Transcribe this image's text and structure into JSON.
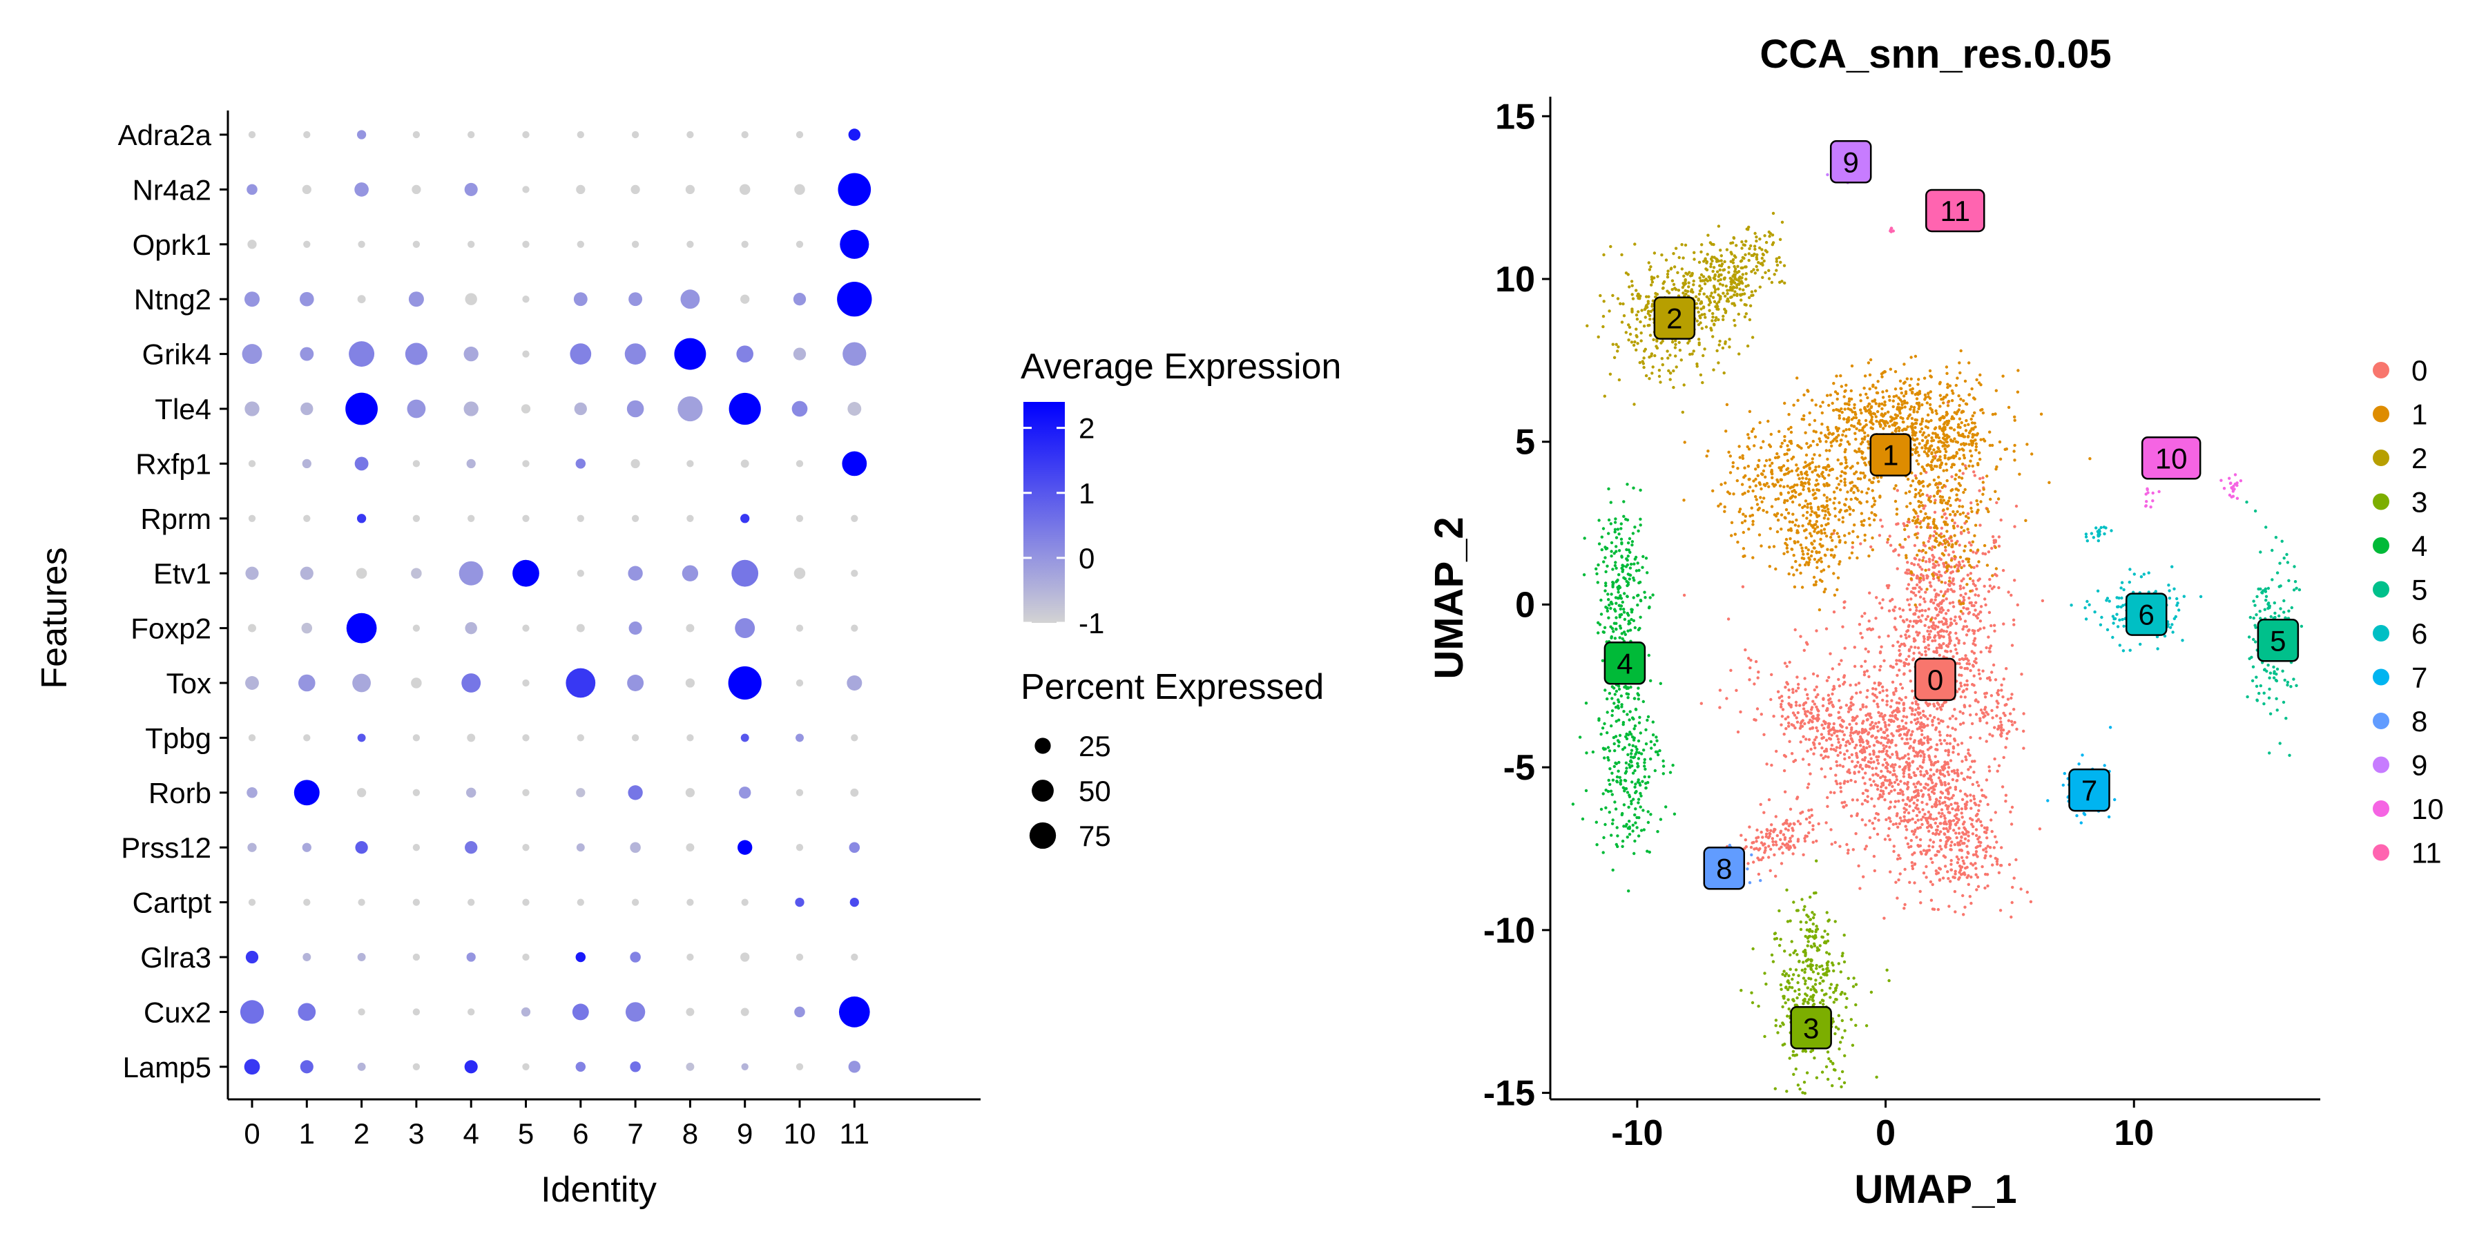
{
  "chart_data": [
    {
      "type": "scatter",
      "subtype": "dotplot",
      "title": "",
      "xlabel": "Identity",
      "ylabel": "Features",
      "categories": [
        "0",
        "1",
        "2",
        "3",
        "4",
        "5",
        "6",
        "7",
        "8",
        "9",
        "10",
        "11"
      ],
      "features": [
        "Adra2a",
        "Nr4a2",
        "Oprk1",
        "Ntng2",
        "Grik4",
        "Tle4",
        "Rxfp1",
        "Rprm",
        "Etv1",
        "Foxp2",
        "Tox",
        "Tpbg",
        "Rorb",
        "Prss12",
        "Cartpt",
        "Glra3",
        "Cux2",
        "Lamp5"
      ],
      "percent_expressed": [
        [
          2,
          2,
          4,
          2,
          2,
          2,
          2,
          2,
          2,
          2,
          2,
          8
        ],
        [
          6,
          4,
          12,
          4,
          10,
          2,
          4,
          4,
          4,
          6,
          6,
          78
        ],
        [
          4,
          2,
          2,
          2,
          2,
          2,
          2,
          2,
          2,
          2,
          2,
          60
        ],
        [
          14,
          12,
          3,
          14,
          8,
          2,
          11,
          11,
          24,
          4,
          9,
          88
        ],
        [
          26,
          11,
          45,
          33,
          13,
          2,
          30,
          30,
          72,
          18,
          9,
          38
        ],
        [
          13,
          9,
          75,
          22,
          13,
          4,
          9,
          18,
          43,
          73,
          15,
          11
        ],
        [
          2,
          4,
          11,
          2,
          4,
          2,
          5,
          4,
          2,
          3,
          2,
          42
        ],
        [
          2,
          2,
          4,
          2,
          2,
          2,
          2,
          2,
          2,
          4,
          2,
          2
        ],
        [
          10,
          10,
          6,
          6,
          40,
          50,
          2,
          13,
          16,
          50,
          7,
          2
        ],
        [
          3,
          6,
          65,
          2,
          8,
          2,
          3,
          10,
          3,
          26,
          2,
          2
        ],
        [
          11,
          18,
          22,
          6,
          24,
          2,
          62,
          17,
          4,
          80,
          2,
          14
        ],
        [
          2,
          2,
          3,
          2,
          3,
          2,
          2,
          2,
          2,
          3,
          3,
          2
        ],
        [
          6,
          45,
          4,
          2,
          5,
          2,
          4,
          13,
          4,
          8,
          2,
          3
        ],
        [
          4,
          4,
          9,
          2,
          9,
          2,
          3,
          6,
          3,
          13,
          2,
          6
        ],
        [
          2,
          2,
          2,
          2,
          2,
          2,
          2,
          2,
          2,
          2,
          4,
          4
        ],
        [
          9,
          3,
          3,
          2,
          4,
          2,
          5,
          6,
          2,
          4,
          2,
          2
        ],
        [
          38,
          20,
          2,
          2,
          2,
          4,
          17,
          25,
          3,
          3,
          6,
          68
        ],
        [
          15,
          10,
          3,
          2,
          10,
          2,
          5,
          6,
          3,
          2,
          2,
          8
        ]
      ],
      "average_expression": [
        [
          -1,
          -1,
          0,
          -1,
          -1,
          -1,
          -1,
          -1,
          -1,
          -1,
          -1,
          2
        ],
        [
          0,
          -1,
          0,
          -1,
          0,
          -1,
          -1,
          -1,
          -1,
          -1,
          -1,
          2.4
        ],
        [
          -1,
          -1,
          -1,
          -1,
          -1,
          -1,
          -1,
          -1,
          -1,
          -1,
          -1,
          2.4
        ],
        [
          0,
          0,
          -1,
          0,
          -1,
          -1,
          0,
          0,
          0,
          -1,
          0,
          2.4
        ],
        [
          0,
          0,
          0.3,
          0.2,
          -0.3,
          -1,
          0.3,
          0.2,
          2.4,
          0.3,
          -0.5,
          0
        ],
        [
          -0.5,
          -0.5,
          2.4,
          0,
          -0.5,
          -1,
          -0.5,
          0,
          -0.2,
          2.4,
          0.2,
          -0.7
        ],
        [
          -1,
          -0.5,
          0.5,
          -1,
          -0.5,
          -1,
          0.3,
          -1,
          -1,
          -1,
          -1,
          2.4
        ],
        [
          -1,
          -1,
          1.5,
          -1,
          -1,
          -1,
          -1,
          -1,
          -1,
          1.5,
          -1,
          -1
        ],
        [
          -0.5,
          -0.5,
          -1,
          -0.7,
          0,
          2.4,
          -1,
          0,
          0,
          0.5,
          -1,
          -1
        ],
        [
          -1,
          -0.7,
          2.4,
          -1,
          -0.5,
          -1,
          -1,
          0,
          -1,
          0.2,
          -1,
          -1
        ],
        [
          -0.5,
          0,
          -0.3,
          -1,
          0.5,
          -1,
          1.5,
          0,
          -1,
          2.4,
          -1,
          -0.3
        ],
        [
          -1,
          -1,
          1,
          -1,
          -1,
          -1,
          -1,
          -1,
          -1,
          1,
          0,
          -1
        ],
        [
          -0.3,
          2.4,
          -1,
          -1,
          -0.5,
          -1,
          -0.7,
          0.5,
          -1,
          0,
          -1,
          -1
        ],
        [
          -0.5,
          -0.3,
          0.9,
          -1,
          0.5,
          -1,
          -0.5,
          -0.5,
          -1,
          2.4,
          -1,
          0.2
        ],
        [
          -1,
          -1,
          -1,
          -1,
          -1,
          -1,
          -1,
          -1,
          -1,
          -1,
          1,
          1.2
        ],
        [
          1.5,
          -0.5,
          -0.5,
          -1,
          0,
          -1,
          2,
          0.3,
          -1,
          -1,
          -1,
          -1
        ],
        [
          0.6,
          0.5,
          -1,
          -1,
          -1,
          -0.5,
          0.5,
          0.3,
          -1,
          -1,
          0,
          2.4
        ],
        [
          1.5,
          0.8,
          -0.5,
          -1,
          1.7,
          -1,
          0.3,
          0.6,
          -0.7,
          -0.5,
          -1,
          0
        ]
      ],
      "color_legend": {
        "title": "Average Expression",
        "ticks": [
          2,
          1,
          0,
          -1
        ],
        "low_color": "#d3d3d3",
        "high_color": "#0000ff",
        "range": [
          -1,
          2.4
        ]
      },
      "size_legend": {
        "title": "Percent Expressed",
        "ticks": [
          25,
          50,
          75
        ]
      }
    },
    {
      "type": "scatter",
      "subtype": "umap",
      "title": "CCA_snn_res.0.05",
      "xlabel": "UMAP_1",
      "ylabel": "UMAP_2",
      "xlim": [
        -13.5,
        17.5
      ],
      "ylim": [
        -15.2,
        15.6
      ],
      "xticks": [
        -10,
        0,
        10
      ],
      "yticks": [
        15,
        10,
        5,
        0,
        -5,
        -10,
        -15
      ],
      "tick_labels_x": [
        "-10",
        "0",
        "10"
      ],
      "tick_labels_y": [
        "15",
        "10",
        "5",
        "0",
        "-5",
        "-10",
        "-15"
      ],
      "legend": {
        "position": "right",
        "items": [
          "0",
          "1",
          "2",
          "3",
          "4",
          "5",
          "6",
          "7",
          "8",
          "9",
          "10",
          "11"
        ]
      },
      "clusters": [
        {
          "name": "0",
          "color": "#F8766D",
          "label_pos": [
            2.0,
            -2.3
          ]
        },
        {
          "name": "1",
          "color": "#DE8C00",
          "label_pos": [
            0.2,
            4.6
          ]
        },
        {
          "name": "2",
          "color": "#B79F00",
          "label_pos": [
            -8.5,
            8.8
          ]
        },
        {
          "name": "3",
          "color": "#7CAE00",
          "label_pos": [
            -3.0,
            -13.0
          ]
        },
        {
          "name": "4",
          "color": "#00BA38",
          "label_pos": [
            -10.5,
            -1.8
          ]
        },
        {
          "name": "5",
          "color": "#00C08B",
          "label_pos": [
            15.8,
            -1.1
          ]
        },
        {
          "name": "6",
          "color": "#00BFC4",
          "label_pos": [
            10.5,
            -0.3
          ]
        },
        {
          "name": "7",
          "color": "#00B4F0",
          "label_pos": [
            8.2,
            -5.7
          ]
        },
        {
          "name": "8",
          "color": "#619CFF",
          "label_pos": [
            -6.5,
            -8.1
          ]
        },
        {
          "name": "9",
          "color": "#C77CFF",
          "label_pos": [
            -1.4,
            13.6
          ]
        },
        {
          "name": "10",
          "color": "#F564E3",
          "label_pos": [
            11.5,
            4.5
          ]
        },
        {
          "name": "11",
          "color": "#FF64B0",
          "label_pos": [
            2.8,
            12.1
          ]
        }
      ],
      "blobs": [
        {
          "c": 0,
          "x": 2.0,
          "y": -1.0,
          "sx": 1.3,
          "sy": 2.2,
          "r": -0.15,
          "n": 900
        },
        {
          "c": 0,
          "x": -0.2,
          "y": -4.8,
          "sx": 2.5,
          "sy": 1.3,
          "r": -0.55,
          "n": 650
        },
        {
          "c": 0,
          "x": 1.8,
          "y": -6.0,
          "sx": 1.0,
          "sy": 1.4,
          "r": 0.2,
          "n": 300
        },
        {
          "c": 0,
          "x": -2.5,
          "y": -3.6,
          "sx": 1.4,
          "sy": 0.5,
          "r": -0.35,
          "n": 180
        },
        {
          "c": 0,
          "x": 3.0,
          "y": -7.5,
          "sx": 0.8,
          "sy": 0.8,
          "r": 0,
          "n": 150
        },
        {
          "c": 0,
          "x": -4.6,
          "y": -7.3,
          "sx": 1.0,
          "sy": 0.35,
          "r": 0.35,
          "n": 130
        },
        {
          "c": 0,
          "x": 4.6,
          "y": -3.4,
          "sx": 0.4,
          "sy": 0.6,
          "r": 0,
          "n": 60
        },
        {
          "c": 1,
          "x": -3.2,
          "y": 3.6,
          "sx": 1.7,
          "sy": 1.0,
          "r": -0.1,
          "n": 500
        },
        {
          "c": 1,
          "x": 1.8,
          "y": 5.3,
          "sx": 1.5,
          "sy": 0.9,
          "r": 0,
          "n": 500
        },
        {
          "c": 1,
          "x": -0.8,
          "y": 5.6,
          "sx": 1.1,
          "sy": 0.7,
          "r": 0,
          "n": 250
        },
        {
          "c": 1,
          "x": 2.4,
          "y": 2.8,
          "sx": 0.9,
          "sy": 1.2,
          "r": 0,
          "n": 250
        },
        {
          "c": 1,
          "x": -2.8,
          "y": 1.6,
          "sx": 0.7,
          "sy": 0.6,
          "r": 0,
          "n": 100
        },
        {
          "c": 2,
          "x": -8.6,
          "y": 8.9,
          "sx": 1.4,
          "sy": 0.9,
          "r": 0.3,
          "n": 400
        },
        {
          "c": 2,
          "x": -6.3,
          "y": 10.0,
          "sx": 1.0,
          "sy": 0.6,
          "r": 0.45,
          "n": 220
        },
        {
          "c": 2,
          "x": -4.9,
          "y": 10.9,
          "sx": 0.4,
          "sy": 0.4,
          "r": 0,
          "n": 40
        },
        {
          "c": 3,
          "x": -3.0,
          "y": -12.3,
          "sx": 0.9,
          "sy": 1.3,
          "r": 0.2,
          "n": 320
        },
        {
          "c": 3,
          "x": -2.9,
          "y": -10.3,
          "sx": 0.3,
          "sy": 0.6,
          "r": 0,
          "n": 50
        },
        {
          "c": 4,
          "x": -10.6,
          "y": 0.6,
          "sx": 0.5,
          "sy": 1.2,
          "r": 0,
          "n": 220
        },
        {
          "c": 4,
          "x": -10.4,
          "y": -4.8,
          "sx": 0.7,
          "sy": 1.4,
          "r": 0,
          "n": 260
        },
        {
          "c": 4,
          "x": -10.8,
          "y": -2.1,
          "sx": 0.3,
          "sy": 0.6,
          "r": 0,
          "n": 60
        },
        {
          "c": 5,
          "x": 15.6,
          "y": -1.0,
          "sx": 0.45,
          "sy": 1.3,
          "r": 0,
          "n": 170
        },
        {
          "c": 6,
          "x": 10.2,
          "y": -0.2,
          "sx": 0.9,
          "sy": 0.5,
          "r": 0,
          "n": 150
        },
        {
          "c": 6,
          "x": 8.5,
          "y": 2.2,
          "sx": 0.25,
          "sy": 0.15,
          "r": 0,
          "n": 20
        },
        {
          "c": 7,
          "x": 8.0,
          "y": -5.7,
          "sx": 0.55,
          "sy": 0.45,
          "r": 0,
          "n": 60
        },
        {
          "c": 8,
          "x": -6.2,
          "y": -7.8,
          "sx": 0.5,
          "sy": 0.3,
          "r": 0,
          "n": 40
        },
        {
          "c": 9,
          "x": -1.5,
          "y": 13.3,
          "sx": 0.3,
          "sy": 0.25,
          "r": 0,
          "n": 25
        },
        {
          "c": 10,
          "x": 14.0,
          "y": 3.6,
          "sx": 0.2,
          "sy": 0.2,
          "r": 0,
          "n": 20
        },
        {
          "c": 10,
          "x": 10.6,
          "y": 3.4,
          "sx": 0.15,
          "sy": 0.2,
          "r": 0,
          "n": 12
        },
        {
          "c": 11,
          "x": 0.2,
          "y": 11.5,
          "sx": 0.05,
          "sy": 0.05,
          "r": 0,
          "n": 6
        }
      ]
    }
  ]
}
